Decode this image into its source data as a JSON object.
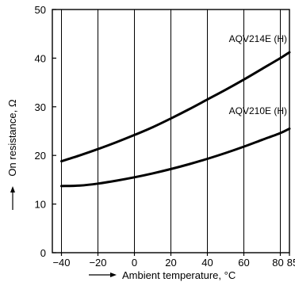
{
  "chart_data": {
    "type": "line",
    "xlabel": "Ambient temperature, °C",
    "ylabel": "On resistance, Ω",
    "xlim": [
      -45,
      85
    ],
    "ylim": [
      0,
      50
    ],
    "x_ticks": [
      -40,
      -20,
      0,
      20,
      40,
      60,
      80,
      85
    ],
    "x_tick_labels": [
      "−40",
      "−20",
      "0",
      "20",
      "40",
      "60",
      "80",
      "85"
    ],
    "y_ticks": [
      0,
      10,
      20,
      30,
      40,
      50
    ],
    "y_tick_labels": [
      "0",
      "10",
      "20",
      "30",
      "40",
      "50"
    ],
    "grid": "vertical",
    "series": [
      {
        "name": "AQV214E (H)",
        "x": [
          -40,
          -30,
          -20,
          -10,
          0,
          10,
          20,
          30,
          40,
          50,
          60,
          70,
          80,
          85
        ],
        "values": [
          18.8,
          20.0,
          21.3,
          22.7,
          24.2,
          25.8,
          27.6,
          29.5,
          31.5,
          33.5,
          35.6,
          37.8,
          40.0,
          41.2
        ]
      },
      {
        "name": "AQV210E (H)",
        "x": [
          -40,
          -30,
          -20,
          -10,
          0,
          10,
          20,
          30,
          40,
          50,
          60,
          70,
          80,
          85
        ],
        "values": [
          13.7,
          13.8,
          14.2,
          14.8,
          15.5,
          16.3,
          17.2,
          18.2,
          19.3,
          20.5,
          21.8,
          23.2,
          24.6,
          25.5
        ]
      }
    ]
  }
}
